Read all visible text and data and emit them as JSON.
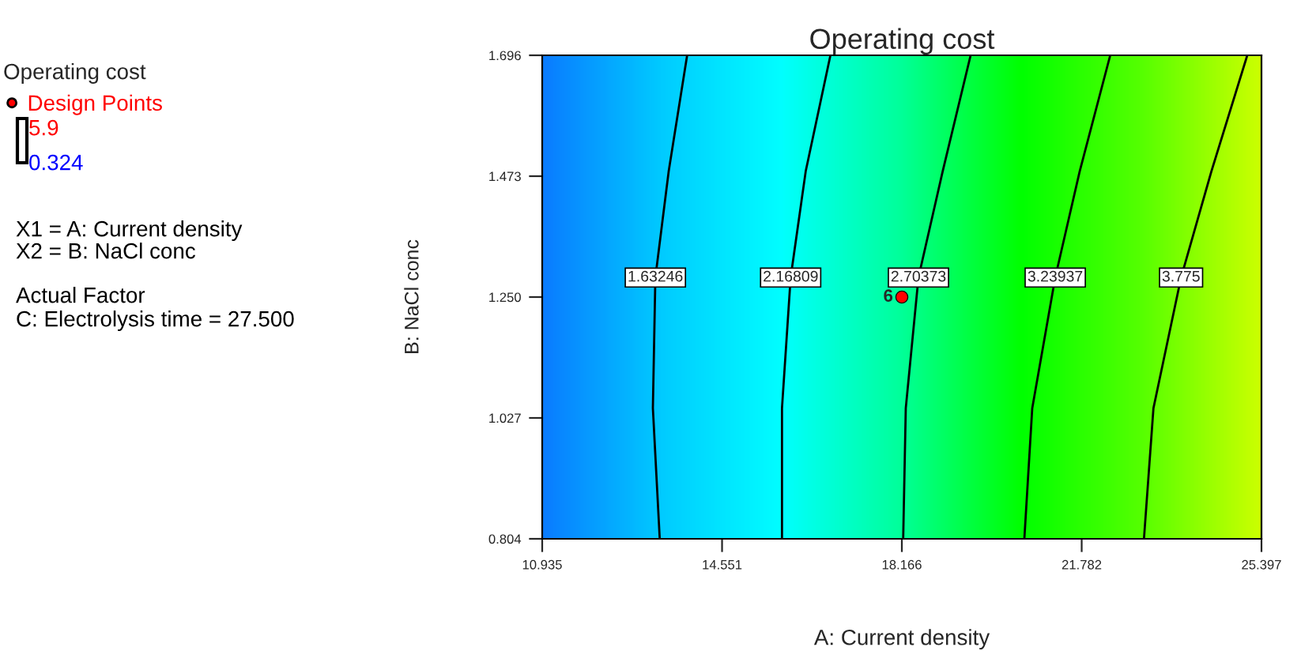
{
  "chart_data": {
    "type": "line",
    "title": "Operating cost",
    "xlabel": "A: Current density",
    "ylabel": "B: NaCl conc",
    "legend_title": "Operating cost",
    "xlim": [
      10.935,
      25.397
    ],
    "ylim": [
      0.804,
      1.696
    ],
    "xticks": [
      10.935,
      14.551,
      18.166,
      21.782,
      25.397
    ],
    "yticks": [
      0.804,
      1.027,
      {
        "value": 1.25,
        "label": "1.250"
      },
      1.473,
      1.696
    ],
    "grid": false,
    "legend": "left",
    "marker": "none",
    "line_style": "solid",
    "series": [
      {
        "name": "1.63246",
        "color": "#000000",
        "x": [
          13.298,
          13.16,
          13.21,
          13.478,
          13.849
        ],
        "values": [
          0.804,
          1.045,
          1.286,
          1.482,
          1.696
        ]
      },
      {
        "name": "2.16809",
        "color": "#000000",
        "x": [
          15.756,
          15.756,
          15.93,
          16.233,
          16.73
        ],
        "values": [
          0.804,
          1.045,
          1.286,
          1.482,
          1.696
        ]
      },
      {
        "name": "2.70373",
        "color": "#000000",
        "x": [
          18.193,
          18.245,
          18.5,
          18.987,
          19.549
        ],
        "values": [
          0.804,
          1.045,
          1.286,
          1.482,
          1.696
        ]
      },
      {
        "name": "3.23937",
        "color": "#000000",
        "x": [
          20.629,
          20.788,
          21.25,
          21.742,
          22.356
        ],
        "values": [
          0.804,
          1.045,
          1.286,
          1.482,
          1.696
        ]
      },
      {
        "name": "3.775",
        "color": "#000000",
        "x": [
          23.034,
          23.225,
          23.78,
          24.39,
          25.111
        ],
        "values": [
          0.804,
          1.045,
          1.286,
          1.482,
          1.696
        ]
      },
      {
        "name": "Design Points",
        "type": "scatter",
        "color": "#ff0000",
        "marker": "circle",
        "x": [
          18.166
        ],
        "values": [
          1.25
        ]
      }
    ],
    "annotations": [
      {
        "text": "6",
        "x": 18.166,
        "y": 1.25
      },
      "5.9",
      "0.324",
      "X1 = A: Current density",
      "X2 = B: NaCl conc",
      "Actual Factor",
      "C: Electrolysis time = 27.500"
    ]
  }
}
